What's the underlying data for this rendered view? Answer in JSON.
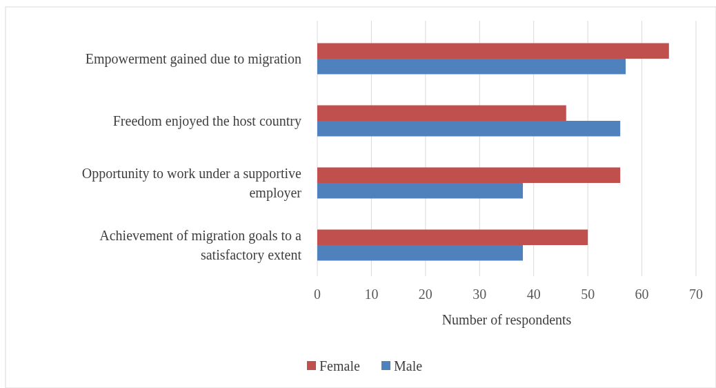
{
  "chart_data": {
    "type": "bar",
    "orientation": "horizontal",
    "categories": [
      "Empowerment gained due to migration",
      "Freedom enjoyed the host country",
      "Opportunity to work under a supportive employer",
      "Achievement of migration goals to a satisfactory extent"
    ],
    "series": [
      {
        "name": "Female",
        "color": "#c0504d",
        "values": [
          65,
          46,
          56,
          50
        ]
      },
      {
        "name": "Male",
        "color": "#4f81bd",
        "values": [
          57,
          56,
          38,
          38
        ]
      }
    ],
    "xlim": [
      0,
      70
    ],
    "xticks": [
      0,
      10,
      20,
      30,
      40,
      50,
      60,
      70
    ],
    "xlabel": "Number of respondents",
    "grid": "x",
    "legend": "bottom"
  }
}
